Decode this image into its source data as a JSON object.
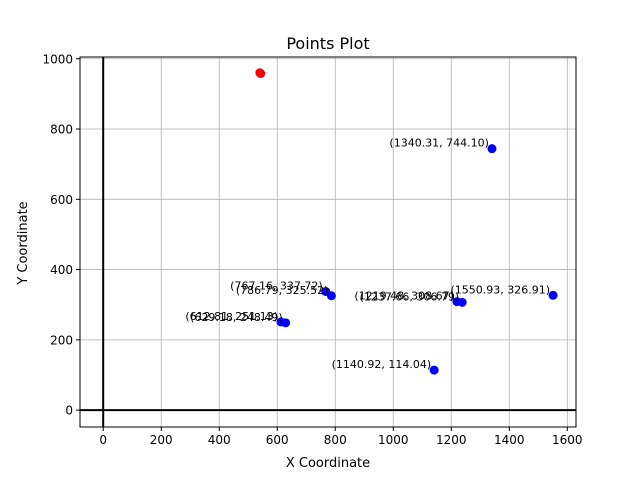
{
  "chart_data": {
    "type": "scatter",
    "title": "Points Plot",
    "xlabel": "X Coordinate",
    "ylabel": "Y Coordinate",
    "xlim": [
      -80,
      1630
    ],
    "ylim": [
      -48,
      1005
    ],
    "xticks": [
      0,
      200,
      400,
      600,
      800,
      1000,
      1200,
      1400,
      1600
    ],
    "yticks": [
      0,
      200,
      400,
      600,
      800,
      1000
    ],
    "grid": true,
    "axis_lines": {
      "x": 0,
      "y": 0
    },
    "series": [
      {
        "color": "#0000ff",
        "points": [
          {
            "x": 1340.31,
            "y": 744.1,
            "label": "(1340.31, 744.10)"
          },
          {
            "x": 767.16,
            "y": 337.72,
            "label": "(767.16, 337.72)"
          },
          {
            "x": 786.79,
            "y": 325.52,
            "label": "(786.79, 325.52)"
          },
          {
            "x": 1219.48,
            "y": 308.67,
            "label": "(1219.48, 308.67)"
          },
          {
            "x": 1237.66,
            "y": 306.79,
            "label": "(1237.66, 306.79)"
          },
          {
            "x": 1550.93,
            "y": 326.91,
            "label": "(1550.93, 326.91)"
          },
          {
            "x": 612.81,
            "y": 251.13,
            "label": "(612.81, 251.13)"
          },
          {
            "x": 629.18,
            "y": 248.49,
            "label": "(629.18, 248.49)"
          },
          {
            "x": 1140.92,
            "y": 114.04,
            "label": "(1140.92, 114.04)"
          }
        ]
      },
      {
        "color": "#ff0000",
        "points": [
          {
            "x": 540,
            "y": 960
          },
          {
            "x": 543,
            "y": 958
          }
        ]
      }
    ]
  }
}
